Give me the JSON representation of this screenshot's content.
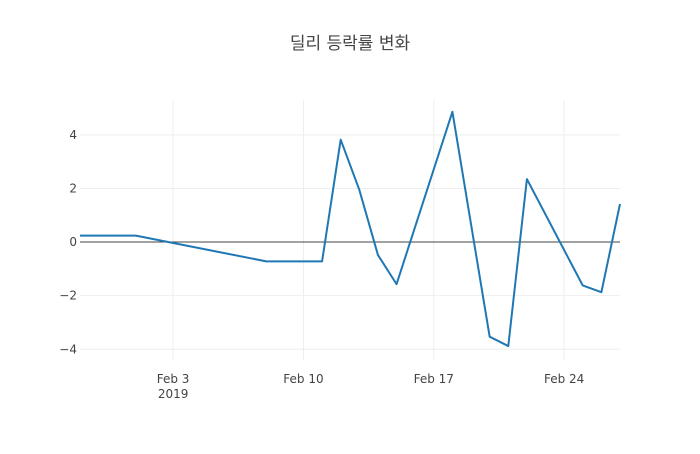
{
  "chart_data": {
    "type": "line",
    "title": "딜리 등락률 변화",
    "xlabel": "",
    "ylabel": "",
    "x_ticks": [
      {
        "date": "2019-02-03",
        "label": "Feb 3",
        "sublabel": "2019"
      },
      {
        "date": "2019-02-10",
        "label": "Feb 10",
        "sublabel": ""
      },
      {
        "date": "2019-02-17",
        "label": "Feb 17",
        "sublabel": ""
      },
      {
        "date": "2019-02-24",
        "label": "Feb 24",
        "sublabel": ""
      }
    ],
    "y_ticks": [
      {
        "value": 4,
        "label": "4"
      },
      {
        "value": 2,
        "label": "2"
      },
      {
        "value": 0,
        "label": "0"
      },
      {
        "value": -2,
        "label": "−2"
      },
      {
        "value": -4,
        "label": "−4"
      }
    ],
    "xlim": [
      "2019-01-29",
      "2019-02-27"
    ],
    "ylim": [
      -4.4,
      5.3
    ],
    "grid": true,
    "zero_line": true,
    "line_color": "#1f77b4",
    "series": [
      {
        "name": "",
        "points": [
          {
            "x": "2019-01-29",
            "y": 0.24
          },
          {
            "x": "2019-02-01",
            "y": 0.24
          },
          {
            "x": "2019-02-08",
            "y": -0.72
          },
          {
            "x": "2019-02-11",
            "y": -0.72
          },
          {
            "x": "2019-02-12",
            "y": 3.82
          },
          {
            "x": "2019-02-13",
            "y": 1.95
          },
          {
            "x": "2019-02-14",
            "y": -0.48
          },
          {
            "x": "2019-02-15",
            "y": -1.57
          },
          {
            "x": "2019-02-18",
            "y": 4.86
          },
          {
            "x": "2019-02-20",
            "y": -3.53
          },
          {
            "x": "2019-02-21",
            "y": -3.88
          },
          {
            "x": "2019-02-22",
            "y": 2.35
          },
          {
            "x": "2019-02-25",
            "y": -1.62
          },
          {
            "x": "2019-02-26",
            "y": -1.87
          },
          {
            "x": "2019-02-27",
            "y": 1.42
          }
        ]
      }
    ]
  }
}
